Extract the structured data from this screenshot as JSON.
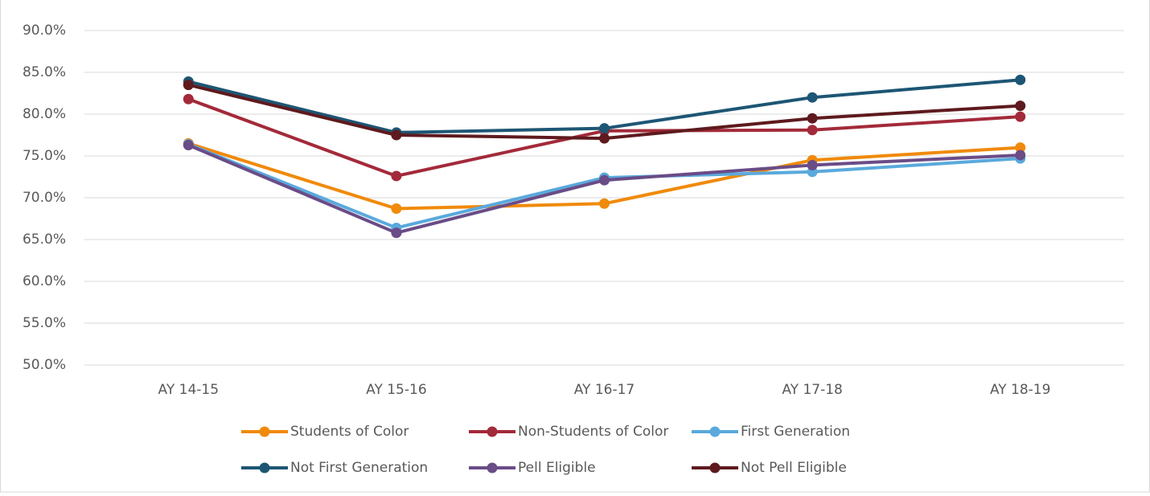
{
  "chart_data": {
    "type": "line",
    "categories": [
      "AY 14-15",
      "AY 15-16",
      "AY 16-17",
      "AY 17-18",
      "AY 18-19"
    ],
    "series": [
      {
        "name": "Students of Color",
        "color": "#f08a0b",
        "values": [
          76.5,
          68.7,
          69.3,
          74.5,
          76.0
        ]
      },
      {
        "name": "Non-Students of Color",
        "color": "#a32a3a",
        "values": [
          81.8,
          72.6,
          78.0,
          78.1,
          79.7
        ]
      },
      {
        "name": "First Generation",
        "color": "#5aa9dc",
        "values": [
          76.4,
          66.4,
          72.4,
          73.1,
          74.7
        ]
      },
      {
        "name": "Not First Generation",
        "color": "#1d5674",
        "values": [
          83.9,
          77.8,
          78.3,
          82.0,
          84.1
        ]
      },
      {
        "name": "Pell Eligible",
        "color": "#6a4c87",
        "values": [
          76.3,
          65.8,
          72.1,
          73.9,
          75.1
        ]
      },
      {
        "name": "Not Pell Eligible",
        "color": "#5e1a1e",
        "values": [
          83.5,
          77.5,
          77.1,
          79.5,
          81.0
        ]
      }
    ],
    "ylim": [
      50,
      90
    ],
    "yticks": [
      {
        "value": 50,
        "label": "50.0%"
      },
      {
        "value": 55,
        "label": "55.0%"
      },
      {
        "value": 60,
        "label": "60.0%"
      },
      {
        "value": 65,
        "label": "65.0%"
      },
      {
        "value": 70,
        "label": "70.0%"
      },
      {
        "value": 75,
        "label": "75.0%"
      },
      {
        "value": 80,
        "label": "80.0%"
      },
      {
        "value": 85,
        "label": "85.0%"
      },
      {
        "value": 90,
        "label": "90.0%"
      }
    ],
    "grid": true,
    "legend": "bottom"
  }
}
